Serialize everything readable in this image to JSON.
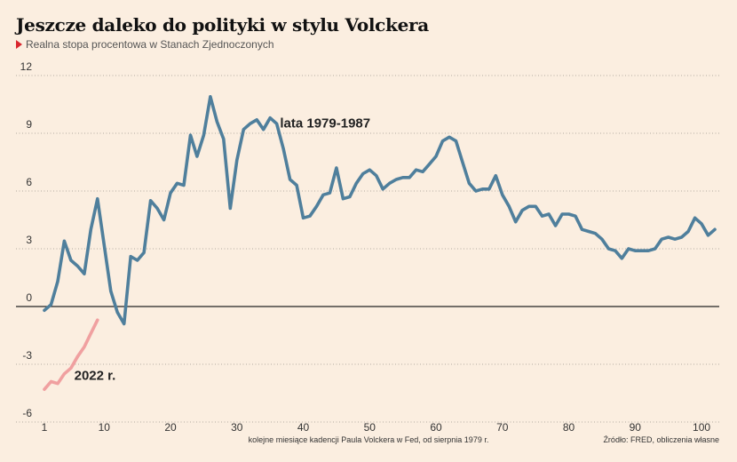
{
  "chart_data": {
    "type": "line",
    "title": "Jeszcze daleko do polityki w stylu Volckera",
    "subtitle": "Realna stopa procentowa w Stanach Zjednoczonych",
    "xlabel": "kolejne miesiące kadencji Paula Volckera w Fed, od sierpnia 1979 r.",
    "source": "Źródło: FRED, obliczenia własne",
    "xlim": [
      1,
      103
    ],
    "ylim": [
      -6.2,
      12
    ],
    "yticks": [
      12,
      9,
      6,
      3,
      0,
      -3,
      -6
    ],
    "xticks": [
      1,
      10,
      20,
      30,
      40,
      50,
      60,
      70,
      80,
      90,
      100
    ],
    "grid": "horizontal-dotted",
    "colors": {
      "volcker": "#4f7f9c",
      "y2022": "#f0a0a0",
      "zero_line": "#222222"
    },
    "series": [
      {
        "name": "lata 1979-1987",
        "x": [
          1,
          2,
          3,
          4,
          5,
          6,
          7,
          8,
          9,
          10,
          11,
          12,
          13,
          14,
          15,
          16,
          17,
          18,
          19,
          20,
          21,
          22,
          23,
          24,
          25,
          26,
          27,
          28,
          29,
          30,
          31,
          32,
          33,
          34,
          35,
          36,
          37,
          38,
          39,
          40,
          41,
          42,
          43,
          44,
          45,
          46,
          47,
          48,
          49,
          50,
          51,
          52,
          53,
          54,
          55,
          56,
          57,
          58,
          59,
          60,
          61,
          62,
          63,
          64,
          65,
          66,
          67,
          68,
          69,
          70,
          71,
          72,
          73,
          74,
          75,
          76,
          77,
          78,
          79,
          80,
          81,
          82,
          83,
          84,
          85,
          86,
          87,
          88,
          89,
          90,
          91,
          92,
          93,
          94,
          95,
          96,
          97,
          98,
          99,
          100,
          101,
          102
        ],
        "values": [
          -0.2,
          0.1,
          1.3,
          3.4,
          2.4,
          2.1,
          1.7,
          4.0,
          5.6,
          3.2,
          0.8,
          -0.3,
          -0.9,
          2.6,
          2.4,
          2.8,
          5.5,
          5.1,
          4.5,
          5.9,
          6.4,
          6.3,
          8.9,
          7.8,
          8.9,
          10.9,
          9.6,
          8.7,
          5.1,
          7.6,
          9.2,
          9.5,
          9.7,
          9.2,
          9.8,
          9.5,
          8.2,
          6.6,
          6.3,
          4.6,
          4.7,
          5.2,
          5.8,
          5.9,
          7.2,
          5.6,
          5.7,
          6.4,
          6.9,
          7.1,
          6.8,
          6.1,
          6.4,
          6.6,
          6.7,
          6.7,
          7.1,
          7.0,
          7.4,
          7.8,
          8.6,
          8.8,
          8.6,
          7.5,
          6.4,
          6.0,
          6.1,
          6.1,
          6.8,
          5.8,
          5.2,
          4.4,
          5.0,
          5.2,
          5.2,
          4.7,
          4.8,
          4.2,
          4.8,
          4.8,
          4.7,
          4.0,
          3.9,
          3.8,
          3.5,
          3.0,
          2.9,
          2.5,
          3.0,
          2.9,
          2.9,
          2.9,
          3.0,
          3.5,
          3.6,
          3.5,
          3.6,
          3.9,
          4.6,
          4.3,
          3.7,
          4.0
        ]
      },
      {
        "name": "2022 r.",
        "x": [
          1,
          2,
          3,
          4,
          5,
          6,
          7,
          8,
          9
        ],
        "values": [
          -4.3,
          -3.9,
          -4.0,
          -3.5,
          -3.2,
          -2.6,
          -2.1,
          -1.4,
          -0.7
        ]
      }
    ],
    "annotations": [
      {
        "text": "lata 1979-1987",
        "x": 36.5,
        "y": 9.3
      },
      {
        "text": "2022 r.",
        "x": 5.5,
        "y": -3.8
      }
    ]
  }
}
